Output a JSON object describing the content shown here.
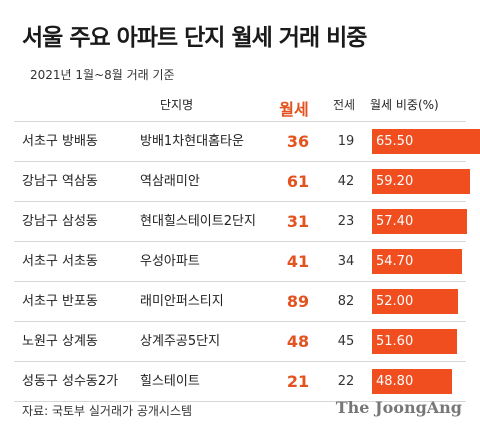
{
  "title": "서울 주요 아파트 단지 월세 거래 비중",
  "subtitle": "2021년 1월~8월 거래 기준",
  "headers": {
    "complex": "단지명",
    "rent": "월세",
    "jeonse": "전세",
    "share": "월세 비중(%)"
  },
  "colors": {
    "bar": "#f04e1f",
    "rent_text": "#e2531f"
  },
  "chart_data": {
    "type": "table",
    "title": "서울 주요 아파트 단지 월세 거래 비중",
    "subtitle": "2021년 1월~8월 거래 기준",
    "columns": [
      "",
      "단지명",
      "월세",
      "전세",
      "월세 비중(%)"
    ],
    "rows": [
      {
        "district": "서초구 방배동",
        "complex": "방배1차현대홈타운",
        "rent": 36,
        "jeonse": 19,
        "share": 65.5,
        "share_label": "65.50"
      },
      {
        "district": "강남구 역삼동",
        "complex": "역삼래미안",
        "rent": 61,
        "jeonse": 42,
        "share": 59.2,
        "share_label": "59.20"
      },
      {
        "district": "강남구 삼성동",
        "complex": "현대힐스테이트2단지",
        "rent": 31,
        "jeonse": 23,
        "share": 57.4,
        "share_label": "57.40"
      },
      {
        "district": "서초구 서초동",
        "complex": "우성아파트",
        "rent": 41,
        "jeonse": 34,
        "share": 54.7,
        "share_label": "54.70"
      },
      {
        "district": "서초구 반포동",
        "complex": "래미안퍼스티지",
        "rent": 89,
        "jeonse": 82,
        "share": 52.0,
        "share_label": "52.00"
      },
      {
        "district": "노원구 상계동",
        "complex": "상계주공5단지",
        "rent": 48,
        "jeonse": 45,
        "share": 51.6,
        "share_label": "51.60"
      },
      {
        "district": "성동구 성수동2가",
        "complex": "힐스테이트",
        "rent": 21,
        "jeonse": 22,
        "share": 48.8,
        "share_label": "48.80"
      }
    ]
  },
  "footer": {
    "source": "자료: 국토부 실거래가 공개시스템",
    "brand": "The JoongAng"
  }
}
